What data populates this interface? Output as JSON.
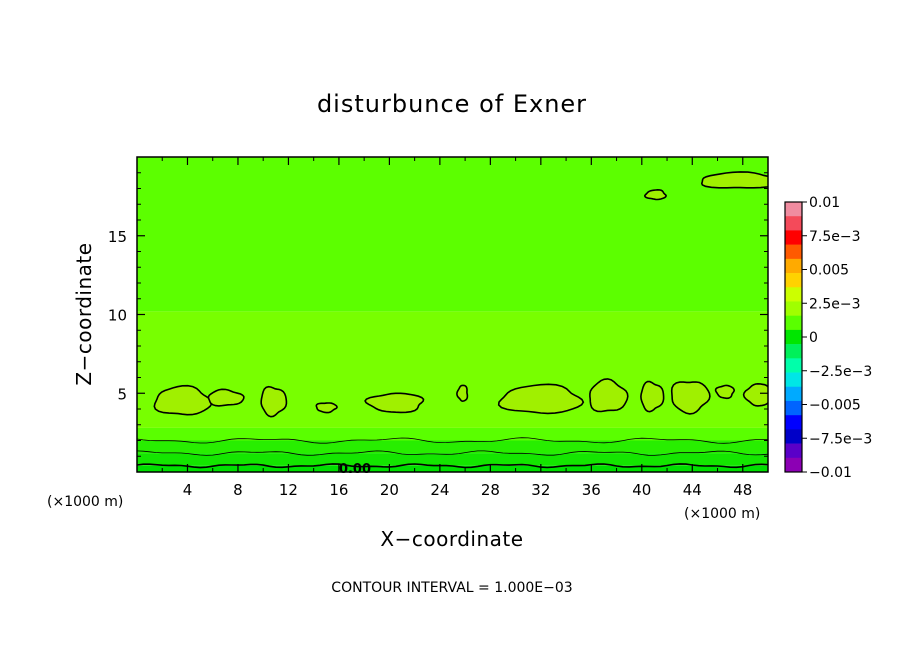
{
  "chart_data": {
    "type": "heatmap",
    "title": "disturbunce of Exner",
    "xlabel": "X−coordinate",
    "ylabel": "Z−coordinate",
    "x_unit_left": "(×1000 m)",
    "x_unit_right": "(×1000 m)",
    "xlim": [
      0,
      50
    ],
    "ylim": [
      0,
      20
    ],
    "x_ticks": [
      4,
      8,
      12,
      16,
      20,
      24,
      28,
      32,
      36,
      40,
      44,
      48
    ],
    "x_tick_labels": [
      "4",
      "8",
      "12",
      "16",
      "20",
      "24",
      "28",
      "32",
      "36",
      "40",
      "44",
      "48"
    ],
    "y_ticks": [
      5,
      10,
      15
    ],
    "y_tick_labels": [
      "5",
      "10",
      "15"
    ],
    "contour_interval_text": "CONTOUR INTERVAL = 1.000E−03",
    "contour_label": "0.00",
    "colorbar": {
      "range": [
        -0.01,
        0.01
      ],
      "label_values": [
        0.01,
        0.0075,
        0.005,
        0.0025,
        0,
        -0.0025,
        -0.005,
        -0.0075,
        -0.01
      ],
      "labels": [
        "0.01",
        "7.5e−3",
        "0.005",
        "2.5e−3",
        "0",
        "−2.5e−3",
        "−0.005",
        "−7.5e−3",
        "−0.01"
      ],
      "colors": [
        "#f08ca0",
        "#f44a5a",
        "#ff0000",
        "#ff5a00",
        "#ffaa00",
        "#ffd200",
        "#ccff00",
        "#a0ff00",
        "#5aff00",
        "#00e600",
        "#00f05a",
        "#00ffaa",
        "#00e6e6",
        "#00aaff",
        "#0064ff",
        "#0000ff",
        "#0000c8",
        "#5a00c8",
        "#8c00b4"
      ]
    },
    "bands": [
      {
        "z": [
          0,
          0.4
        ],
        "value": -0.0015,
        "color": "#00e000"
      },
      {
        "z": [
          0.4,
          1.2
        ],
        "value": -0.001,
        "color": "#14e600"
      },
      {
        "z": [
          1.2,
          2.0
        ],
        "value": -0.0005,
        "color": "#28ee00"
      },
      {
        "z": [
          2.0,
          2.8
        ],
        "value": 0.0002,
        "color": "#5aff00"
      },
      {
        "z": [
          2.8,
          10.2
        ],
        "value": 0.0008,
        "color": "#78ff00"
      },
      {
        "z": [
          10.2,
          20
        ],
        "value": 0.0003,
        "color": "#5cff00"
      }
    ],
    "blobs": [
      {
        "x": 3.6,
        "z": 4.5,
        "rx": 2.2,
        "rz": 0.9
      },
      {
        "x": 7.0,
        "z": 4.7,
        "rx": 1.4,
        "rz": 0.5
      },
      {
        "x": 10.8,
        "z": 4.5,
        "rx": 1.0,
        "rz": 0.9
      },
      {
        "x": 15.0,
        "z": 4.1,
        "rx": 0.8,
        "rz": 0.3
      },
      {
        "x": 20.5,
        "z": 4.4,
        "rx": 2.2,
        "rz": 0.6
      },
      {
        "x": 25.8,
        "z": 5.0,
        "rx": 0.4,
        "rz": 0.5
      },
      {
        "x": 32.0,
        "z": 4.6,
        "rx": 3.2,
        "rz": 0.9
      },
      {
        "x": 37.3,
        "z": 4.8,
        "rx": 1.5,
        "rz": 1.0
      },
      {
        "x": 40.8,
        "z": 4.8,
        "rx": 0.9,
        "rz": 0.9
      },
      {
        "x": 43.8,
        "z": 4.8,
        "rx": 1.5,
        "rz": 1.0
      },
      {
        "x": 46.6,
        "z": 5.1,
        "rx": 0.7,
        "rz": 0.4
      },
      {
        "x": 49.2,
        "z": 4.9,
        "rx": 1.0,
        "rz": 0.7
      },
      {
        "x": 41.1,
        "z": 17.6,
        "rx": 0.8,
        "rz": 0.3
      },
      {
        "x": 47.8,
        "z": 18.5,
        "rx": 3.2,
        "rz": 0.5
      }
    ]
  }
}
